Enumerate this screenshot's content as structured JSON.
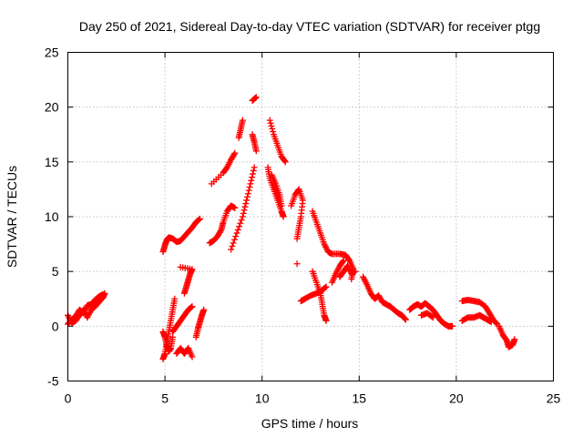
{
  "chart_data": {
    "type": "scatter",
    "title": "Day 250 of 2021, Sidereal Day-to-day VTEC variation (SDTVAR) for receiver ptgg",
    "xlabel": "GPS time / hours",
    "ylabel": "SDTVAR / TECUs",
    "xlim": [
      0,
      25
    ],
    "ylim": [
      -5,
      25
    ],
    "xticks": [
      "0",
      "5",
      "10",
      "15",
      "20",
      "25"
    ],
    "yticks": [
      "-5",
      "0",
      "5",
      "10",
      "15",
      "20",
      "25"
    ],
    "grid": true,
    "marker": "+",
    "marker_color": "#ff0000",
    "series": [
      {
        "name": "SDTVAR",
        "segments": [
          [
            [
              0.0,
              1.0
            ],
            [
              0.2,
              0.3
            ],
            [
              0.4,
              0.5
            ],
            [
              0.6,
              1.0
            ],
            [
              0.8,
              1.5
            ],
            [
              1.0,
              0.8
            ],
            [
              1.2,
              1.5
            ],
            [
              1.4,
              1.8
            ],
            [
              1.6,
              2.2
            ],
            [
              1.8,
              2.6
            ],
            [
              1.9,
              3.0
            ]
          ],
          [
            [
              0.0,
              0.2
            ],
            [
              0.2,
              0.6
            ],
            [
              0.4,
              0.9
            ],
            [
              0.6,
              1.5
            ],
            [
              0.8,
              1.2
            ],
            [
              1.0,
              1.9
            ],
            [
              1.2,
              2.0
            ],
            [
              1.4,
              2.4
            ],
            [
              1.6,
              2.7
            ],
            [
              1.8,
              2.9
            ]
          ],
          [
            [
              4.9,
              6.8
            ],
            [
              5.0,
              7.4
            ],
            [
              5.1,
              7.9
            ],
            [
              5.2,
              8.1
            ],
            [
              5.4,
              8.0
            ],
            [
              5.6,
              7.7
            ],
            [
              5.8,
              7.8
            ],
            [
              6.0,
              8.2
            ],
            [
              6.2,
              8.6
            ],
            [
              6.4,
              9.0
            ],
            [
              6.6,
              9.5
            ],
            [
              6.8,
              9.8
            ]
          ],
          [
            [
              4.9,
              -3.0
            ],
            [
              5.0,
              -2.5
            ],
            [
              5.1,
              -1.5
            ],
            [
              5.2,
              -0.5
            ],
            [
              5.3,
              0.5
            ],
            [
              5.4,
              1.5
            ],
            [
              5.5,
              2.5
            ]
          ],
          [
            [
              4.9,
              -0.5
            ],
            [
              5.0,
              -1.0
            ],
            [
              5.1,
              -1.8
            ],
            [
              5.2,
              -2.3
            ],
            [
              5.3,
              -2.0
            ],
            [
              5.4,
              -1.0
            ]
          ],
          [
            [
              5.6,
              -2.5
            ],
            [
              5.8,
              -2.0
            ],
            [
              6.0,
              -2.5
            ],
            [
              6.2,
              -2.0
            ],
            [
              6.4,
              -2.8
            ]
          ],
          [
            [
              5.4,
              -0.5
            ],
            [
              5.6,
              0.0
            ],
            [
              5.8,
              0.5
            ],
            [
              6.0,
              1.0
            ],
            [
              6.2,
              1.5
            ],
            [
              6.4,
              1.8
            ]
          ],
          [
            [
              6.0,
              3.0
            ],
            [
              6.1,
              3.6
            ],
            [
              6.2,
              4.2
            ],
            [
              6.3,
              4.8
            ],
            [
              6.4,
              5.2
            ],
            [
              5.8,
              5.4
            ]
          ],
          [
            [
              6.6,
              -1.0
            ],
            [
              6.7,
              -0.2
            ],
            [
              6.8,
              0.4
            ],
            [
              6.9,
              1.0
            ],
            [
              7.0,
              1.5
            ]
          ],
          [
            [
              7.3,
              7.6
            ],
            [
              7.5,
              7.8
            ],
            [
              7.7,
              8.2
            ],
            [
              7.9,
              8.8
            ],
            [
              8.0,
              9.5
            ],
            [
              8.2,
              10.5
            ],
            [
              8.4,
              11.0
            ],
            [
              8.6,
              10.8
            ]
          ],
          [
            [
              7.4,
              13.0
            ],
            [
              8.0,
              14.0
            ],
            [
              8.2,
              14.5
            ],
            [
              8.4,
              15.2
            ],
            [
              8.6,
              15.8
            ]
          ],
          [
            [
              8.8,
              17.2
            ],
            [
              8.9,
              18.0
            ],
            [
              9.0,
              18.8
            ]
          ],
          [
            [
              8.4,
              7.0
            ],
            [
              8.7,
              8.5
            ],
            [
              9.0,
              10.0
            ],
            [
              9.2,
              11.5
            ],
            [
              9.4,
              13.0
            ],
            [
              9.6,
              14.5
            ]
          ],
          [
            [
              9.5,
              20.6
            ],
            [
              9.7,
              20.9
            ]
          ],
          [
            [
              9.5,
              17.5
            ],
            [
              9.6,
              16.8
            ],
            [
              9.7,
              16.0
            ]
          ],
          [
            [
              10.4,
              18.8
            ],
            [
              10.6,
              17.5
            ],
            [
              10.8,
              16.5
            ],
            [
              11.0,
              15.5
            ],
            [
              11.2,
              15.0
            ]
          ],
          [
            [
              10.3,
              14.5
            ],
            [
              10.4,
              13.5
            ],
            [
              10.6,
              12.5
            ],
            [
              10.8,
              11.5
            ],
            [
              11.0,
              10.5
            ],
            [
              11.1,
              10.0
            ]
          ],
          [
            [
              10.5,
              13.8
            ],
            [
              10.7,
              13.0
            ],
            [
              10.9,
              12.0
            ],
            [
              11.0,
              11.0
            ]
          ],
          [
            [
              11.5,
              11.0
            ],
            [
              11.7,
              12.0
            ],
            [
              11.9,
              12.5
            ],
            [
              12.1,
              11.5
            ],
            [
              12.0,
              10.0
            ],
            [
              11.9,
              9.0
            ],
            [
              11.8,
              8.0
            ]
          ],
          [
            [
              11.8,
              5.7
            ]
          ],
          [
            [
              12.6,
              10.5
            ],
            [
              12.8,
              9.5
            ],
            [
              13.0,
              8.5
            ],
            [
              13.2,
              7.5
            ],
            [
              13.4,
              6.8
            ],
            [
              13.6,
              6.6
            ],
            [
              14.0,
              6.6
            ],
            [
              14.3,
              6.5
            ],
            [
              14.5,
              6.0
            ],
            [
              14.7,
              5.2
            ],
            [
              14.6,
              4.3
            ]
          ],
          [
            [
              12.6,
              5.0
            ],
            [
              12.8,
              4.0
            ],
            [
              13.0,
              3.0
            ],
            [
              13.1,
              2.0
            ],
            [
              13.2,
              1.0
            ],
            [
              13.3,
              0.5
            ]
          ],
          [
            [
              12.0,
              2.3
            ],
            [
              12.2,
              2.5
            ],
            [
              12.5,
              2.8
            ],
            [
              12.8,
              3.0
            ],
            [
              13.1,
              3.3
            ],
            [
              13.3,
              3.6
            ]
          ],
          [
            [
              13.6,
              4.0
            ],
            [
              13.8,
              4.8
            ],
            [
              14.0,
              5.5
            ],
            [
              14.2,
              6.0
            ]
          ],
          [
            [
              14.0,
              4.5
            ],
            [
              14.2,
              5.0
            ],
            [
              14.4,
              5.5
            ],
            [
              14.6,
              4.8
            ],
            [
              14.8,
              5.0
            ]
          ],
          [
            [
              15.2,
              4.5
            ],
            [
              15.4,
              3.8
            ],
            [
              15.6,
              3.0
            ],
            [
              15.8,
              2.5
            ],
            [
              16.0,
              2.8
            ],
            [
              16.2,
              2.2
            ],
            [
              16.4,
              2.0
            ],
            [
              16.6,
              1.8
            ],
            [
              16.8,
              1.5
            ],
            [
              17.0,
              1.2
            ],
            [
              17.2,
              1.0
            ],
            [
              17.4,
              0.6
            ]
          ],
          [
            [
              17.6,
              1.5
            ],
            [
              17.8,
              1.8
            ],
            [
              18.0,
              2.0
            ],
            [
              18.2,
              1.8
            ],
            [
              18.4,
              2.1
            ],
            [
              18.6,
              1.8
            ],
            [
              18.8,
              1.5
            ],
            [
              19.0,
              1.0
            ],
            [
              19.2,
              0.5
            ],
            [
              19.4,
              0.2
            ],
            [
              19.6,
              0.0
            ],
            [
              19.8,
              0.0
            ]
          ],
          [
            [
              18.2,
              1.0
            ],
            [
              18.5,
              1.2
            ],
            [
              18.8,
              0.8
            ]
          ],
          [
            [
              20.3,
              2.3
            ],
            [
              20.6,
              2.4
            ],
            [
              20.9,
              2.3
            ],
            [
              21.2,
              2.2
            ],
            [
              21.5,
              1.8
            ],
            [
              21.7,
              1.2
            ],
            [
              21.9,
              0.6
            ],
            [
              22.1,
              0.2
            ]
          ],
          [
            [
              20.3,
              0.5
            ],
            [
              20.6,
              0.8
            ],
            [
              20.9,
              0.8
            ],
            [
              21.2,
              1.0
            ],
            [
              21.4,
              0.8
            ],
            [
              21.6,
              0.6
            ],
            [
              21.8,
              0.4
            ]
          ],
          [
            [
              22.2,
              0.0
            ],
            [
              22.4,
              -0.8
            ],
            [
              22.6,
              -1.3
            ],
            [
              22.7,
              -1.9
            ],
            [
              22.9,
              -1.7
            ],
            [
              23.0,
              -1.2
            ]
          ]
        ]
      }
    ]
  }
}
